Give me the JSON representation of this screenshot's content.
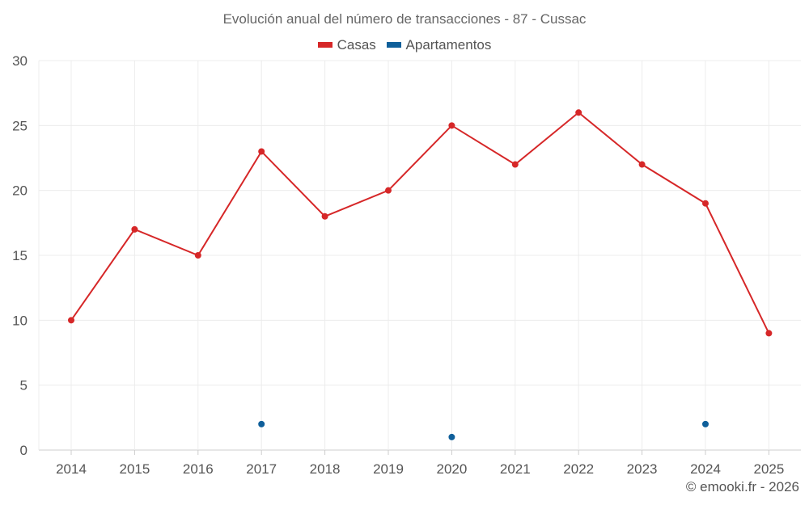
{
  "chart_data": {
    "type": "line",
    "title": "Evolución anual del número de transacciones - 87 - Cussac",
    "xlabel": "",
    "ylabel": "",
    "categories": [
      "2014",
      "2015",
      "2016",
      "2017",
      "2018",
      "2019",
      "2020",
      "2021",
      "2022",
      "2023",
      "2024",
      "2025"
    ],
    "ylim": [
      0,
      30
    ],
    "yticks": [
      "0",
      "5",
      "10",
      "15",
      "20",
      "25",
      "30"
    ],
    "grid": true,
    "legend_position": "top-center",
    "series": [
      {
        "name": "Casas",
        "color": "#d62728",
        "line": true,
        "values": [
          10,
          17,
          15,
          23,
          18,
          20,
          25,
          22,
          26,
          22,
          19,
          9
        ]
      },
      {
        "name": "Apartamentos",
        "color": "#0f5f9a",
        "line": false,
        "values": [
          null,
          null,
          null,
          2,
          null,
          null,
          1,
          null,
          null,
          null,
          2,
          null
        ]
      }
    ]
  },
  "credit": "© emooki.fr - 2026"
}
